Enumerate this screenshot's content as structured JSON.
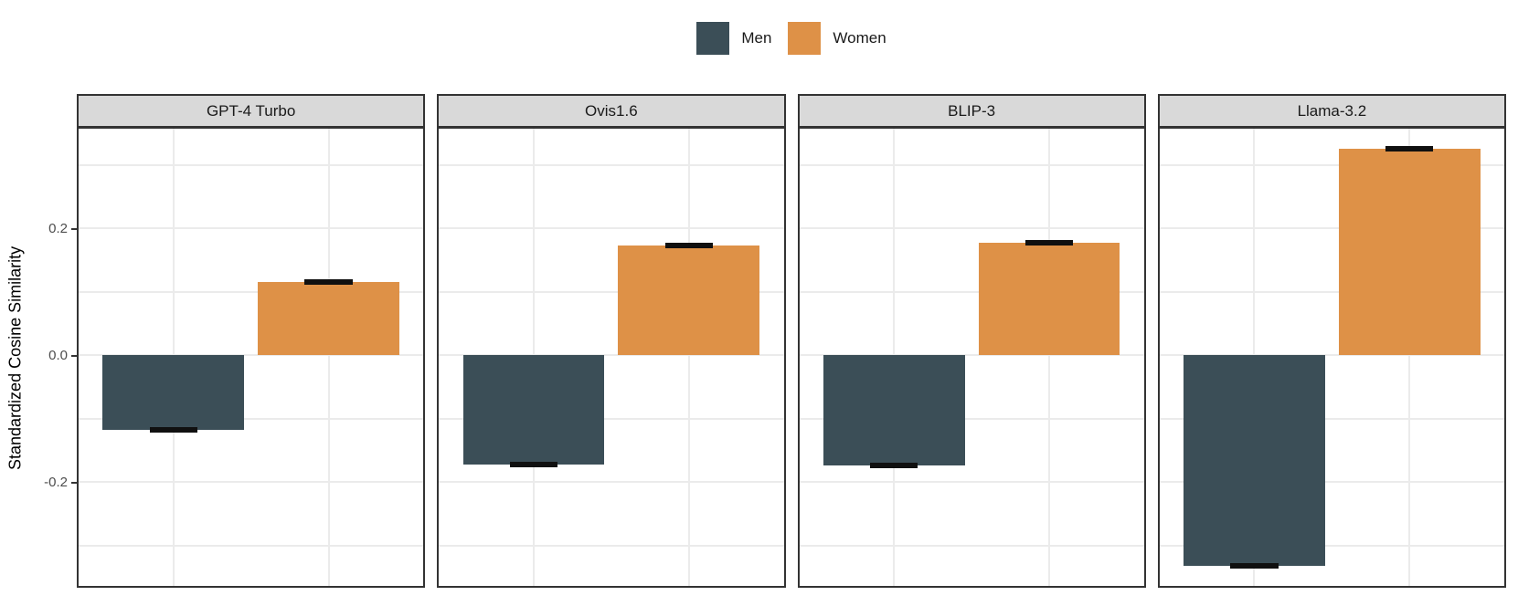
{
  "figure": {
    "y_axis_title": "Standardized Cosine Similarity",
    "y_ticks": [
      {
        "label": "0.2",
        "value": 0.2
      },
      {
        "label": "0.0",
        "value": 0.0
      },
      {
        "label": "-0.2",
        "value": -0.2
      }
    ]
  },
  "chart_data": {
    "type": "bar",
    "title": "",
    "xlabel": "",
    "ylabel": "Standardized Cosine Similarity",
    "facets": [
      "GPT-4 Turbo",
      "Ovis1.6",
      "BLIP-3",
      "Llama-3.2"
    ],
    "categories": [
      "Men",
      "Women"
    ],
    "series": [
      {
        "name": "Men",
        "color": "#3b4e57",
        "values": [
          -0.118,
          -0.173,
          -0.174,
          -0.332
        ],
        "errors": [
          0.004,
          0.004,
          0.004,
          0.004
        ]
      },
      {
        "name": "Women",
        "color": "#de9147",
        "values": [
          0.115,
          0.173,
          0.177,
          0.325
        ],
        "errors": [
          0.004,
          0.004,
          0.004,
          0.004
        ]
      }
    ],
    "ylim": [
      -0.367,
      0.361
    ],
    "grid_step": 0.1,
    "grid": "on",
    "legend_position": "top-center",
    "error_bars": "black caps at bar ends"
  }
}
